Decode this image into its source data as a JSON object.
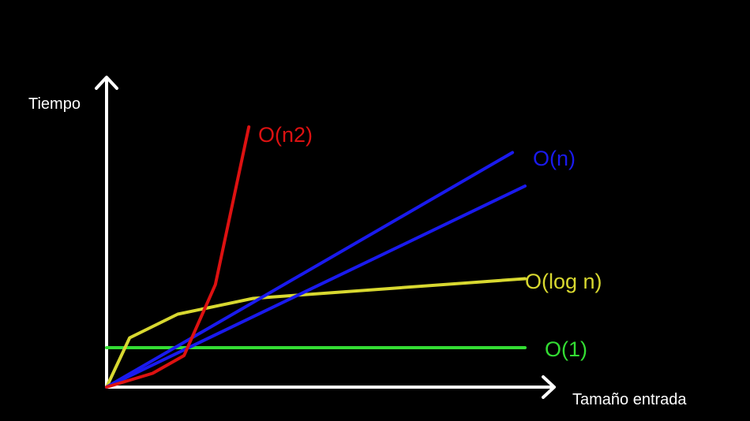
{
  "chart_data": {
    "type": "line",
    "title": "",
    "xlabel": "Tamaño entrada",
    "ylabel": "Tiempo",
    "grid": false,
    "legend": "none",
    "series": [
      {
        "name": "O(1)",
        "color": "#33dd33",
        "points": [
          [
            0,
            100
          ],
          [
            1000,
            100
          ]
        ]
      },
      {
        "name": "O(log n)",
        "color": "#d8d830",
        "points": [
          [
            0,
            0
          ],
          [
            55,
            125
          ],
          [
            170,
            185
          ],
          [
            350,
            225
          ],
          [
            1000,
            275
          ]
        ]
      },
      {
        "name": "O(n)",
        "color": "#1a1aee",
        "points": [
          [
            0,
            0
          ],
          [
            970,
            595
          ]
        ]
      },
      {
        "name": "",
        "color": "#1a1aee",
        "points": [
          [
            0,
            0
          ],
          [
            1000,
            510
          ]
        ]
      },
      {
        "name": "O(n2)",
        "color": "#dd1111",
        "points": [
          [
            0,
            0
          ],
          [
            110,
            35
          ],
          [
            185,
            80
          ],
          [
            260,
            260
          ],
          [
            340,
            660
          ]
        ]
      }
    ],
    "xlim": [
      0,
      1000
    ],
    "ylim": [
      0,
      700
    ],
    "axis_color": "#ffffff"
  }
}
